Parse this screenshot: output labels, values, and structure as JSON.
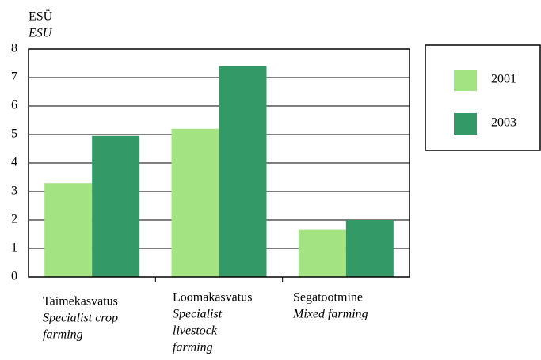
{
  "chart_data": {
    "type": "bar",
    "y_label": "ESÜ",
    "y_label_en": "ESU",
    "categories": [
      "Taimekasvatus",
      "Loomakasvatus",
      "Segatootmine"
    ],
    "categories_en": [
      [
        "Specialist crop",
        "farming"
      ],
      [
        "Specialist",
        "livestock",
        "farming"
      ],
      [
        "Mixed farming"
      ]
    ],
    "series": [
      {
        "name": "2001",
        "color": "#a3e382",
        "values": [
          3.3,
          5.2,
          1.65
        ]
      },
      {
        "name": "2003",
        "color": "#339966",
        "values": [
          4.95,
          7.4,
          2.0
        ]
      }
    ],
    "ylim": [
      0,
      8
    ],
    "yticks": [
      0,
      1,
      2,
      3,
      4,
      5,
      6,
      7,
      8
    ],
    "grid": true,
    "legend": "right"
  }
}
